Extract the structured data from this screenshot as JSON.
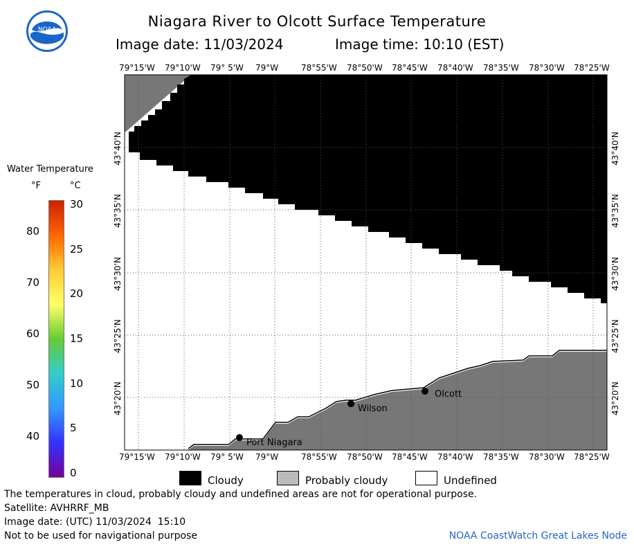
{
  "header": {
    "title": "Niagara River to Olcott Surface Temperature",
    "image_date": "Image date: 11/03/2024",
    "image_time": "Image time: 10:10 (EST)"
  },
  "logo": {
    "text": "NOAA"
  },
  "colorbar": {
    "title": "Water Temperature",
    "unit_f": "°F",
    "unit_c": "°C",
    "f_ticks": [
      "80",
      "70",
      "60",
      "50",
      "40"
    ],
    "c_ticks": [
      "30",
      "25",
      "20",
      "15",
      "10",
      "5",
      "0"
    ],
    "gradient": [
      "#cc2200",
      "#ff6600",
      "#ffcc33",
      "#ffff66",
      "#66cc33",
      "#33cccc",
      "#3399ff",
      "#3333ff",
      "#770099"
    ]
  },
  "map": {
    "lon_labels": [
      "79°15'W",
      "79°10'W",
      "79° 5'W",
      "79°W",
      "78°55'W",
      "78°50'W",
      "78°45'W",
      "78°40'W",
      "78°35'W",
      "78°30'W",
      "78°25'W"
    ],
    "lat_labels": [
      "43°40'N",
      "43°35'N",
      "43°30'N",
      "43°25'N",
      "43°20'N"
    ],
    "cities": [
      {
        "name": "Port Niagara"
      },
      {
        "name": "Wilson"
      },
      {
        "name": "Olcott"
      }
    ],
    "colors": {
      "cloudy": "#000000",
      "probably_cloudy": "#777777",
      "undefined": "#ffffff"
    }
  },
  "legend": {
    "cloudy": "Cloudy",
    "probably_cloudy": "Probably cloudy",
    "undefined": "Undefined"
  },
  "footer": {
    "disclaimer": "The temperatures in cloud, probably cloudy and undefined areas are not for operational purpose.",
    "satellite": "Satellite: AVHRRF_MB",
    "utc_date": "Image date: (UTC) 11/03/2024  15:10",
    "nav_note": "Not to be used for navigational purpose",
    "credit": "NOAA CoastWatch Great Lakes Node"
  }
}
